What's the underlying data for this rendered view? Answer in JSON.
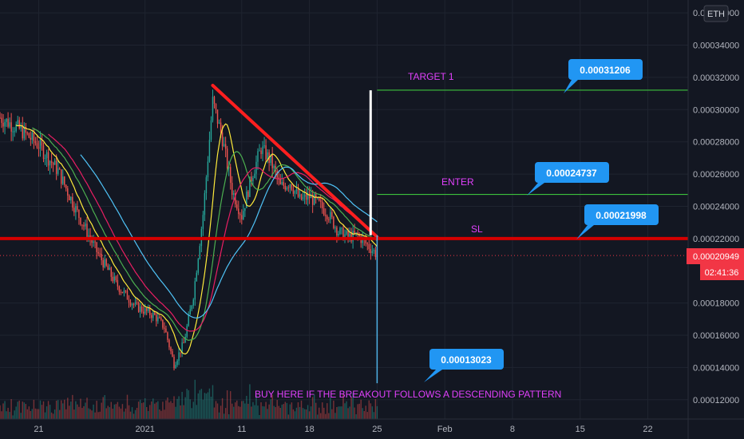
{
  "symbol_badge": "ETH",
  "colors": {
    "background": "#131722",
    "grid": "#1f2430",
    "candle_up": "#26a69a",
    "candle_down": "#ef5350",
    "trendline": "#ff1f1f",
    "sl_line": "#d50000",
    "target_line": "#3cc13c",
    "callout": "#2196f3",
    "annotation": "#e040fb",
    "price_tag": "#f23645",
    "ma_fast": "#ffeb3b",
    "ma_mid1": "#4caf50",
    "ma_mid2": "#e91e63",
    "ma_slow": "#4fc3f7"
  },
  "chart_data": {
    "type": "candlestick",
    "y_range": [
      0.000108,
      0.000368
    ],
    "y_ticks": [
      "0.00012000",
      "0.00014000",
      "0.00016000",
      "0.00018000",
      "0.00022000",
      "0.00024000",
      "0.00026000",
      "0.00028000",
      "0.00030000",
      "0.00032000",
      "0.00034000",
      "0.00036000"
    ],
    "y_tick_values": [
      0.00012,
      0.00014,
      0.00016,
      0.00018,
      0.00022,
      0.00024,
      0.00026,
      0.00028,
      0.0003,
      0.00032,
      0.00034,
      0.00036
    ],
    "x_range": [
      "2020-12-17",
      "2021-02-26"
    ],
    "x_ticks": [
      {
        "label": "21",
        "date": "2020-12-21"
      },
      {
        "label": "2021",
        "date": "2021-01-01"
      },
      {
        "label": "11",
        "date": "2021-01-11"
      },
      {
        "label": "18",
        "date": "2021-01-18"
      },
      {
        "label": "25",
        "date": "2021-01-25"
      },
      {
        "label": "Feb",
        "date": "2021-02-01"
      },
      {
        "label": "8",
        "date": "2021-02-08"
      },
      {
        "label": "15",
        "date": "2021-02-15"
      },
      {
        "label": "22",
        "date": "2021-02-22"
      }
    ],
    "price_path": [
      {
        "date": "2020-12-17",
        "price": 0.000295
      },
      {
        "date": "2020-12-19",
        "price": 0.000288
      },
      {
        "date": "2020-12-21",
        "price": 0.000278
      },
      {
        "date": "2020-12-23",
        "price": 0.000262
      },
      {
        "date": "2020-12-25",
        "price": 0.000236
      },
      {
        "date": "2020-12-27",
        "price": 0.000212
      },
      {
        "date": "2020-12-29",
        "price": 0.000192
      },
      {
        "date": "2020-12-31",
        "price": 0.000178
      },
      {
        "date": "2021-01-02",
        "price": 0.000172
      },
      {
        "date": "2021-01-03",
        "price": 0.000165
      },
      {
        "date": "2021-01-04",
        "price": 0.000142
      },
      {
        "date": "2021-01-05",
        "price": 0.000155
      },
      {
        "date": "2021-01-06",
        "price": 0.000185
      },
      {
        "date": "2021-01-07",
        "price": 0.000235
      },
      {
        "date": "2021-01-08",
        "price": 0.000305
      },
      {
        "date": "2021-01-09",
        "price": 0.000282
      },
      {
        "date": "2021-01-10",
        "price": 0.00025
      },
      {
        "date": "2021-01-11",
        "price": 0.000234
      },
      {
        "date": "2021-01-12",
        "price": 0.000258
      },
      {
        "date": "2021-01-13",
        "price": 0.000276
      },
      {
        "date": "2021-01-14",
        "price": 0.000268
      },
      {
        "date": "2021-01-15",
        "price": 0.000252
      },
      {
        "date": "2021-01-16",
        "price": 0.000255
      },
      {
        "date": "2021-01-17",
        "price": 0.000244
      },
      {
        "date": "2021-01-18",
        "price": 0.000246
      },
      {
        "date": "2021-01-19",
        "price": 0.000241
      },
      {
        "date": "2021-01-20",
        "price": 0.000235
      },
      {
        "date": "2021-01-21",
        "price": 0.000224
      },
      {
        "date": "2021-01-22",
        "price": 0.000221
      },
      {
        "date": "2021-01-23",
        "price": 0.000222
      },
      {
        "date": "2021-01-24",
        "price": 0.000216
      },
      {
        "date": "2021-01-25",
        "price": 0.00021
      }
    ],
    "trendline": {
      "start": {
        "date": "2021-01-08",
        "price": 0.000315
      },
      "end": {
        "date": "2021-01-25",
        "price": 0.000221
      }
    },
    "levels": [
      {
        "name": "TARGET 1",
        "price": 0.00031206,
        "label": "0.00031206",
        "start_date": "2021-01-25"
      },
      {
        "name": "ENTER",
        "price": 0.00024737,
        "label": "0.00024737",
        "start_date": "2021-01-25"
      },
      {
        "name": "SL",
        "price": 0.00021998,
        "label": "0.00021998",
        "start_date": "2020-12-17"
      }
    ],
    "white_vertical": {
      "date": "2021-01-24",
      "from": 0.000222,
      "to": 0.000312
    },
    "projection_line": {
      "date": "2021-01-25",
      "from": 0.000222,
      "to": 0.00013023
    },
    "projection_callout": {
      "label": "0.00013023",
      "price": 0.00013023
    },
    "current_price": {
      "label": "0.00020949",
      "price": 0.00020949
    },
    "countdown": "02:41:36",
    "annotations": [
      {
        "text": "TARGET 1"
      },
      {
        "text": "ENTER"
      },
      {
        "text": "SL"
      },
      {
        "text": "BUY HERE IF THE BREAKOUT FOLLOWS A DESCENDING PATTERN"
      }
    ]
  }
}
